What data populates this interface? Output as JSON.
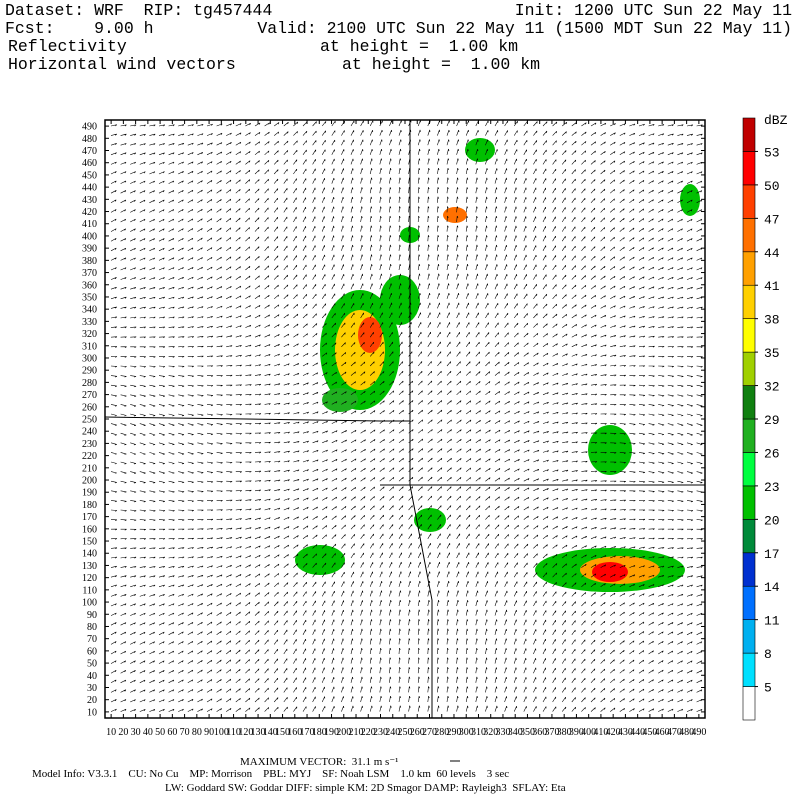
{
  "header": {
    "dataset": "Dataset: WRF  RIP: tg457444",
    "init": "Init: 1200 UTC Sun 22 May 11",
    "fcst": "Fcst:    9.00 h",
    "valid": "Valid: 2100 UTC Sun 22 May 11 (1500 MDT Sun 22 May 11)",
    "field1": "Reflectivity",
    "field1_height": "at height =  1.00 km",
    "field2": "Horizontal wind vectors",
    "field2_height": "at height =  1.00 km"
  },
  "chart_data": {
    "type": "contour",
    "xlim": [
      5,
      495
    ],
    "ylim": [
      5,
      495
    ],
    "xticks": [
      10,
      20,
      30,
      40,
      50,
      60,
      70,
      80,
      90,
      100,
      110,
      120,
      130,
      140,
      150,
      160,
      170,
      180,
      190,
      200,
      210,
      220,
      230,
      240,
      250,
      260,
      270,
      280,
      290,
      300,
      310,
      320,
      330,
      340,
      350,
      360,
      370,
      380,
      390,
      400,
      410,
      420,
      430,
      440,
      450,
      460,
      470,
      480,
      490
    ],
    "yticks": [
      10,
      20,
      30,
      40,
      50,
      60,
      70,
      80,
      90,
      100,
      110,
      120,
      130,
      140,
      150,
      160,
      170,
      180,
      190,
      200,
      210,
      220,
      230,
      240,
      250,
      260,
      270,
      280,
      290,
      300,
      310,
      320,
      330,
      340,
      350,
      360,
      370,
      380,
      390,
      400,
      410,
      420,
      430,
      440,
      450,
      460,
      470,
      480,
      490
    ],
    "colorbar": {
      "unit": "dBZ",
      "levels": [
        5,
        8,
        11,
        14,
        17,
        20,
        23,
        26,
        29,
        32,
        35,
        38,
        41,
        44,
        47,
        50,
        53
      ],
      "colors": [
        "#ffffff",
        "#00e0ff",
        "#00b0f0",
        "#0070ff",
        "#0030d0",
        "#008a3a",
        "#00c000",
        "#00ff40",
        "#20b020",
        "#108010",
        "#a0d000",
        "#ffff00",
        "#ffd000",
        "#ffa000",
        "#ff7000",
        "#ff4000",
        "#ff0000",
        "#c00000"
      ]
    }
  },
  "footer": {
    "max_vector": "MAXIMUM VECTOR:  31.1 m s⁻¹",
    "model_info": "Model Info: V3.3.1    CU: No Cu    MP: Morrison    PBL: MYJ    SF: Noah LSM    1.0 km  60 levels    3 sec",
    "physics": "LW: Goddard SW: Goddar DIFF: simple KM: 2D Smagor DAMP: Rayleigh3  SFLAY: Eta"
  }
}
